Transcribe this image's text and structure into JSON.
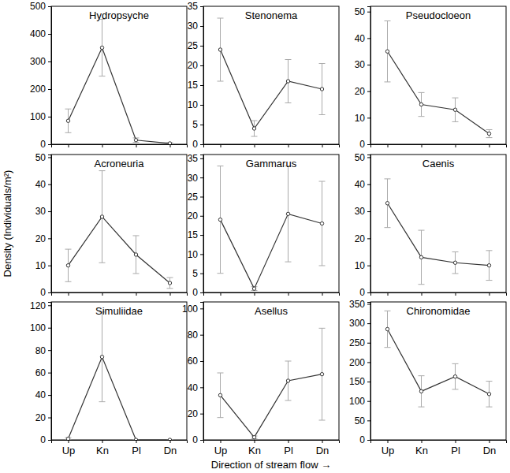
{
  "chart_data": [
    {
      "type": "line",
      "title": "Hydropsyche",
      "categories": [
        "Up",
        "Kn",
        "Pl",
        "Dn"
      ],
      "values": [
        85,
        350,
        15,
        3
      ],
      "errors": [
        43,
        103,
        8,
        3
      ],
      "ylim": [
        0,
        500
      ],
      "yticks": [
        0,
        100,
        200,
        300,
        400,
        500
      ],
      "tick_labels": "y",
      "color": "#333333",
      "marker": "circle"
    },
    {
      "type": "line",
      "title": "Stenonema",
      "categories": [
        "Up",
        "Kn",
        "Pl",
        "Dn"
      ],
      "values": [
        24,
        4,
        16,
        14
      ],
      "errors": [
        8,
        2,
        5.5,
        6.5
      ],
      "ylim": [
        0,
        35
      ],
      "yticks": [
        0,
        5,
        10,
        15,
        20,
        25,
        30,
        35
      ],
      "tick_labels": "y",
      "color": "#333333",
      "marker": "circle"
    },
    {
      "type": "line",
      "title": "Pseudocloeon",
      "categories": [
        "Up",
        "Kn",
        "Pl",
        "Dn"
      ],
      "values": [
        35,
        15,
        13,
        4
      ],
      "errors": [
        11.5,
        4.5,
        4.5,
        1.5
      ],
      "ylim": [
        0,
        52
      ],
      "yticks": [
        0,
        10,
        20,
        30,
        40,
        50
      ],
      "tick_labels": "y",
      "color": "#333333",
      "marker": "circle"
    },
    {
      "type": "line",
      "title": "Acroneuria",
      "ylabel": "Density (Individuals/m²)",
      "categories": [
        "Up",
        "Kn",
        "Pl",
        "Dn"
      ],
      "values": [
        10,
        28,
        14,
        3.5
      ],
      "errors": [
        6,
        17,
        7,
        2
      ],
      "ylim": [
        0,
        51
      ],
      "yticks": [
        0,
        10,
        20,
        30,
        40,
        50
      ],
      "tick_labels": "y",
      "color": "#333333",
      "marker": "circle"
    },
    {
      "type": "line",
      "title": "Gammarus",
      "categories": [
        "Up",
        "Kn",
        "Pl",
        "Dn"
      ],
      "values": [
        19,
        1,
        20.5,
        18
      ],
      "errors": [
        14,
        0.5,
        12.5,
        11
      ],
      "ylim": [
        0,
        36
      ],
      "yticks": [
        0,
        5,
        10,
        15,
        20,
        25,
        30,
        35
      ],
      "tick_labels": "y",
      "color": "#333333",
      "marker": "circle"
    },
    {
      "type": "line",
      "title": "Caenis",
      "categories": [
        "Up",
        "Kn",
        "Pl",
        "Dn"
      ],
      "values": [
        33,
        13,
        11,
        10
      ],
      "errors": [
        9,
        10,
        4,
        5.5
      ],
      "ylim": [
        0,
        51
      ],
      "yticks": [
        0,
        10,
        20,
        30,
        40,
        50
      ],
      "tick_labels": "y",
      "color": "#333333",
      "marker": "circle"
    },
    {
      "type": "line",
      "title": "Simuliidae",
      "categories": [
        "Up",
        "Kn",
        "Pl",
        "Dn"
      ],
      "values": [
        1,
        74,
        0,
        0
      ],
      "errors": [
        1,
        40,
        0,
        0
      ],
      "ylim": [
        0,
        123
      ],
      "yticks": [
        0,
        20,
        40,
        60,
        80,
        100,
        120
      ],
      "color": "#333333",
      "marker": "circle"
    },
    {
      "type": "line",
      "title": "Asellus",
      "xlabel": "Direction of stream flow →",
      "categories": [
        "Up",
        "Kn",
        "Pl",
        "Dn"
      ],
      "values": [
        34,
        2,
        45,
        50
      ],
      "errors": [
        17,
        1,
        15,
        35
      ],
      "ylim": [
        0,
        105
      ],
      "yticks": [
        0,
        20,
        40,
        60,
        80,
        100
      ],
      "color": "#333333",
      "marker": "circle"
    },
    {
      "type": "line",
      "title": "Chironomidae",
      "categories": [
        "Up",
        "Kn",
        "Pl",
        "Dn"
      ],
      "values": [
        285,
        125,
        163,
        118
      ],
      "errors": [
        47,
        40,
        33,
        33
      ],
      "ylim": [
        0,
        355
      ],
      "yticks": [
        0,
        50,
        100,
        150,
        200,
        250,
        300,
        350
      ],
      "color": "#333333",
      "marker": "circle"
    }
  ]
}
